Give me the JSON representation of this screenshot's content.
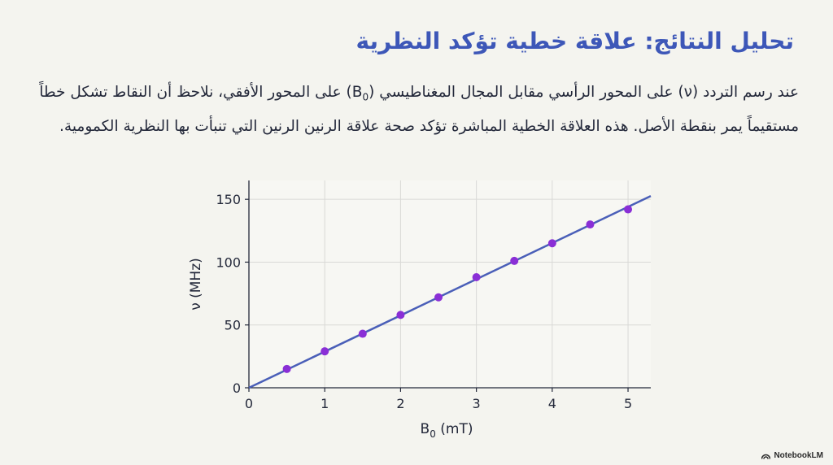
{
  "slide": {
    "title": "تحليل النتائج: علاقة خطية تؤكد النظرية",
    "paragraph_part1": "عند رسم التردد (ν) على المحور الرأسي مقابل المجال المغناطيسي (B",
    "paragraph_sub": "0",
    "paragraph_part2": ") على المحور الأفقي، نلاحظ أن النقاط تشكل خطاً مستقيماً يمر بنقطة الأصل. هذه العلاقة الخطية المباشرة تؤكد صحة علاقة الرنين الرنين التي تنبأت بها النظرية الكمومية."
  },
  "chart_data": {
    "type": "scatter",
    "xlabel": "B",
    "xlabel_sub": "0",
    "xlabel_unit": " (mT)",
    "ylabel": "ν (MHz)",
    "xlim": [
      0,
      5.3
    ],
    "ylim": [
      0,
      165
    ],
    "xticks": [
      0,
      1,
      2,
      3,
      4,
      5
    ],
    "yticks": [
      0,
      50,
      100,
      150
    ],
    "grid": true,
    "series": [
      {
        "points_x": [
          0.5,
          1.0,
          1.5,
          2.0,
          2.5,
          3.0,
          3.5,
          4.0,
          4.5,
          5.0
        ],
        "points_y": [
          15,
          29,
          43,
          58,
          72,
          88,
          101,
          115,
          130,
          142
        ],
        "color": "#8a2fd6"
      }
    ],
    "fit_line": {
      "slope": 28.8,
      "intercept": 0,
      "x_end": 5.3,
      "color": "#4a5fb8"
    }
  },
  "watermark": {
    "text": "NotebookLM"
  },
  "colors": {
    "background": "#f4f4ef",
    "title": "#3d57b8",
    "text": "#23283a"
  }
}
